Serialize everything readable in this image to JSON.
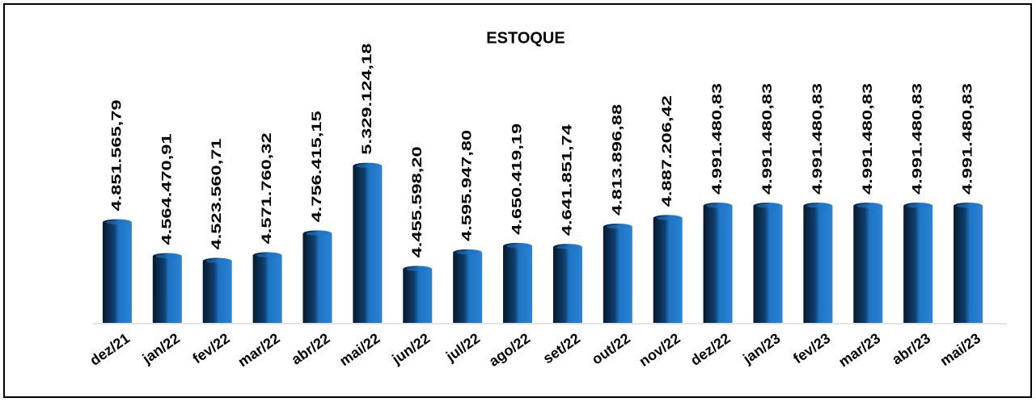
{
  "chart_data": {
    "type": "bar",
    "title": "ESTOQUE",
    "categories": [
      "dez/21",
      "jan/22",
      "fev/22",
      "mar/22",
      "abr/22",
      "mai/22",
      "jun/22",
      "jul/22",
      "ago/22",
      "set/22",
      "out/22",
      "nov/22",
      "dez/22",
      "jan/23",
      "fev/23",
      "mar/23",
      "abr/23",
      "mai/23"
    ],
    "values": [
      4851565.79,
      4564470.91,
      4523560.71,
      4571760.32,
      4756415.15,
      5329124.18,
      4455598.2,
      4595947.8,
      4650419.19,
      4641851.74,
      4813896.88,
      4887206.42,
      4991480.83,
      4991480.83,
      4991480.83,
      4991480.83,
      4991480.83,
      4991480.83
    ],
    "value_labels": [
      "4.851.565,79",
      "4.564.470,91",
      "4.523.560,71",
      "4.571.760,32",
      "4.756.415,15",
      "5.329.124,18",
      "4.455.598,20",
      "4.595.947,80",
      "4.650.419,19",
      "4.641.851,74",
      "4.813.896,88",
      "4.887.206,42",
      "4.991.480,83",
      "4.991.480,83",
      "4.991.480,83",
      "4.991.480,83",
      "4.991.480,83",
      "4.991.480,83"
    ],
    "color": "#1f74c4",
    "ylim": [
      4000000,
      5600000
    ]
  }
}
